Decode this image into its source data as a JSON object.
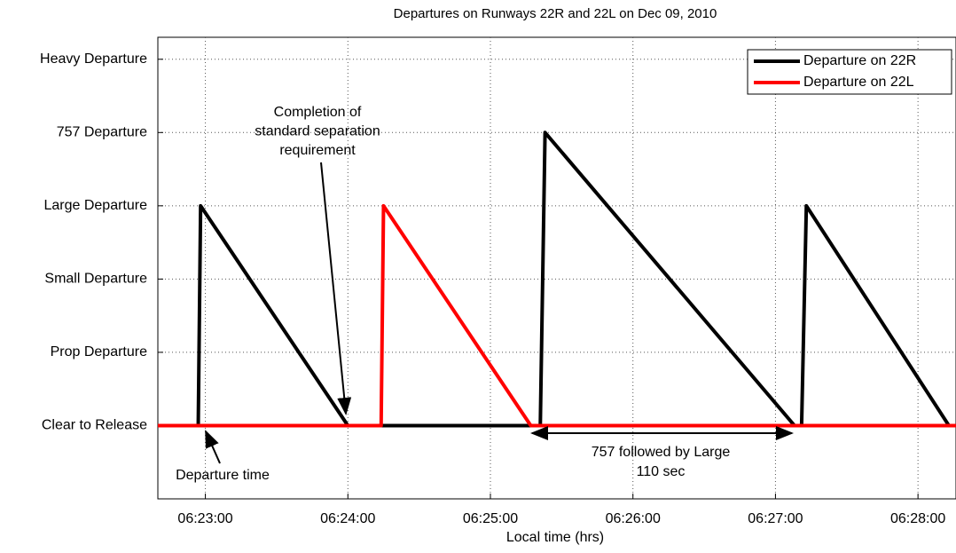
{
  "chart_data": {
    "type": "line",
    "title": "Departures on Runways 22R and 22L on Dec 09, 2010",
    "x_label": "Local time (hrs)",
    "xlim": [
      22960,
      23296
    ],
    "xticks": [
      {
        "value": 22980,
        "label": "06:23:00"
      },
      {
        "value": 23040,
        "label": "06:24:00"
      },
      {
        "value": 23100,
        "label": "06:25:00"
      },
      {
        "value": 23160,
        "label": "06:26:00"
      },
      {
        "value": 23220,
        "label": "06:27:00"
      },
      {
        "value": 23280,
        "label": "06:28:00"
      }
    ],
    "ylim": [
      -1,
      5.3
    ],
    "yticks": [
      {
        "value": 0,
        "label": "Clear to Release"
      },
      {
        "value": 1,
        "label": "Prop Departure"
      },
      {
        "value": 2,
        "label": "Small Departure"
      },
      {
        "value": 3,
        "label": "Large Departure"
      },
      {
        "value": 4,
        "label": "757 Departure"
      },
      {
        "value": 5,
        "label": "Heavy Departure"
      }
    ],
    "grid": true,
    "legend": "upper right",
    "series": [
      {
        "name": "Departure on 22R",
        "color": "#000000",
        "x": [
          22960,
          22977,
          22978,
          23040,
          23121,
          23123,
          23228,
          23231,
          23233,
          23293,
          23296
        ],
        "values": [
          0,
          0,
          3,
          0,
          0,
          4,
          0,
          0,
          3,
          0,
          0
        ]
      },
      {
        "name": "Departure on 22L",
        "color": "#ff0000",
        "x": [
          22960,
          23054,
          23055,
          23117,
          23296
        ],
        "values": [
          0,
          0,
          3,
          0,
          0
        ]
      }
    ],
    "annotations": [
      {
        "lines": [
          "Completion of",
          "standard separation",
          "requirement"
        ]
      },
      {
        "lines": [
          "Departure time"
        ]
      },
      {
        "lines": [
          "757 followed by Large",
          "110 sec"
        ]
      }
    ]
  }
}
